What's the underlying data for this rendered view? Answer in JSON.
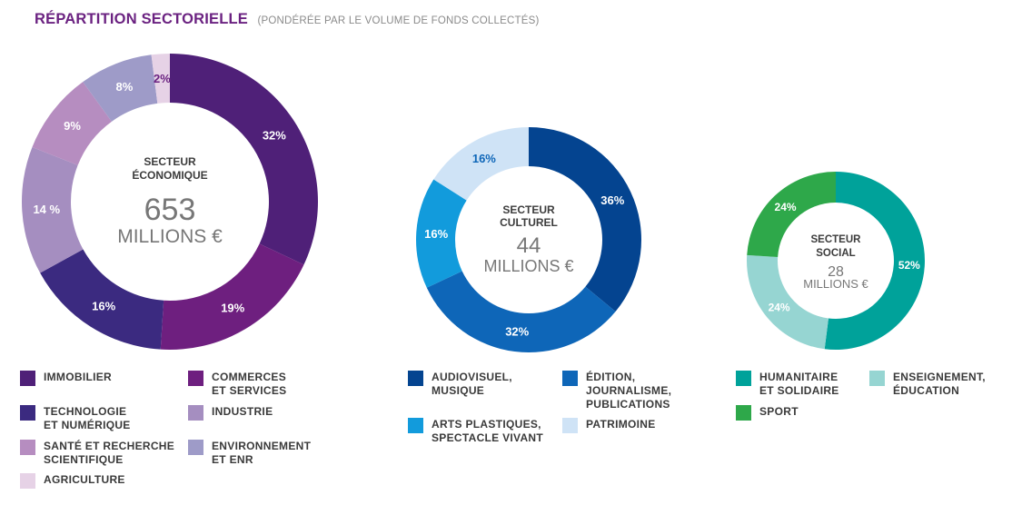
{
  "header": {
    "title": "RÉPARTITION SECTORIELLE",
    "subtitle": "(PONDÉRÉE PAR LE VOLUME DE FONDS COLLECTÉS)"
  },
  "chart_data": [
    {
      "type": "donut",
      "center": {
        "name_line1": "SECTEUR",
        "name_line2": "ÉCONOMIQUE",
        "amount": "653",
        "unit": "MILLIONS €"
      },
      "slices": [
        {
          "name": "IMMOBILIER",
          "value": 32,
          "label": "32%",
          "color": "#4f2078",
          "label_color": "#ffffff"
        },
        {
          "name": "COMMERCES\nET SERVICES",
          "value": 19,
          "label": "19%",
          "color": "#6e1f7f",
          "label_color": "#ffffff"
        },
        {
          "name": "TECHNOLOGIE\nET NUMÉRIQUE",
          "value": 16,
          "label": "16%",
          "color": "#3b2a80",
          "label_color": "#ffffff"
        },
        {
          "name": "INDUSTRIE",
          "value": 14,
          "label": "14 %",
          "color": "#a58ec0",
          "label_color": "#ffffff"
        },
        {
          "name": "SANTÉ ET RECHERCHE\nSCIENTIFIQUE",
          "value": 9,
          "label": "9%",
          "color": "#b68dc0",
          "label_color": "#ffffff"
        },
        {
          "name": "ENVIRONNEMENT\nET ENR",
          "value": 8,
          "label": "8%",
          "color": "#9e9bc8",
          "label_color": "#ffffff"
        },
        {
          "name": "AGRICULTURE",
          "value": 2,
          "label": "2%",
          "color": "#e6d2e6",
          "label_color": "#6b2281"
        }
      ]
    },
    {
      "type": "donut",
      "center": {
        "name_line1": "SECTEUR",
        "name_line2": "CULTUREL",
        "amount": "44",
        "unit": "MILLIONS €"
      },
      "slices": [
        {
          "name": "AUDIOVISUEL,\nMUSIQUE",
          "value": 36,
          "label": "36%",
          "color": "#044490",
          "label_color": "#ffffff"
        },
        {
          "name": "ÉDITION,\nJOURNALISME,\nPUBLICATIONS",
          "value": 32,
          "label": "32%",
          "color": "#0e66b8",
          "label_color": "#ffffff"
        },
        {
          "name": "ARTS PLASTIQUES,\nSPECTACLE VIVANT",
          "value": 16,
          "label": "16%",
          "color": "#129bdc",
          "label_color": "#ffffff"
        },
        {
          "name": "PATRIMOINE",
          "value": 16,
          "label": "16%",
          "color": "#cfe3f6",
          "label_color": "#0e66b8"
        }
      ]
    },
    {
      "type": "donut",
      "center": {
        "name_line1": "SECTEUR",
        "name_line2": "SOCIAL",
        "amount": "28",
        "unit": "MILLIONS €"
      },
      "slices": [
        {
          "name": "HUMANITAIRE\nET SOLIDAIRE",
          "value": 52,
          "label": "52%",
          "color": "#00a29a",
          "label_color": "#ffffff"
        },
        {
          "name": "ENSEIGNEMENT,\nÉDUCATION",
          "value": 24,
          "label": "24%",
          "color": "#96d5d2",
          "label_color": "#ffffff"
        },
        {
          "name": "SPORT",
          "value": 24,
          "label": "24%",
          "color": "#2ea84a",
          "label_color": "#ffffff"
        }
      ]
    }
  ]
}
